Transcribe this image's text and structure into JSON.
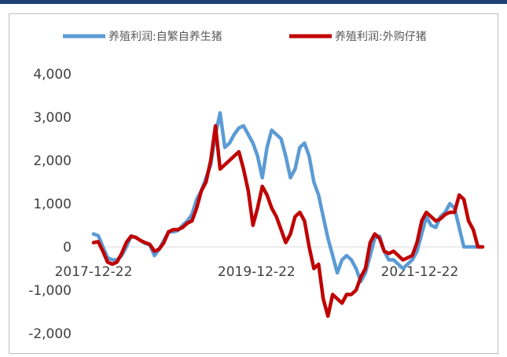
{
  "chart_data": {
    "type": "line",
    "title": "",
    "xlabel": "",
    "ylabel": "",
    "ylim": [
      -2000,
      4000
    ],
    "yticks": [
      -2000,
      -1000,
      0,
      1000,
      2000,
      3000,
      4000
    ],
    "ytick_labels": [
      "-2,000",
      "-1,000",
      "0",
      "1,000",
      "2,000",
      "3,000",
      "4,000"
    ],
    "xtick_labels": [
      "2017-12-22",
      "2019-12-22",
      "2021-12-22"
    ],
    "legend": "top",
    "grid": false,
    "series": [
      {
        "name": "养殖利润:自繁自养生猪",
        "color": "#5b9bd5",
        "x": [
          "2017-12-22",
          "2018-01-12",
          "2018-02-02",
          "2018-02-23",
          "2018-03-16",
          "2018-04-06",
          "2018-04-27",
          "2018-05-18",
          "2018-06-08",
          "2018-06-29",
          "2018-07-20",
          "2018-08-10",
          "2018-08-31",
          "2018-09-21",
          "2018-10-12",
          "2018-11-02",
          "2018-11-23",
          "2018-12-14",
          "2019-01-04",
          "2019-01-25",
          "2019-02-15",
          "2019-03-08",
          "2019-03-29",
          "2019-04-19",
          "2019-05-10",
          "2019-05-31",
          "2019-06-21",
          "2019-07-12",
          "2019-08-02",
          "2019-08-23",
          "2019-09-13",
          "2019-10-04",
          "2019-10-25",
          "2019-11-15",
          "2019-12-06",
          "2019-12-27",
          "2020-01-17",
          "2020-02-07",
          "2020-02-28",
          "2020-03-20",
          "2020-04-10",
          "2020-05-01",
          "2020-05-22",
          "2020-06-12",
          "2020-07-03",
          "2020-07-24",
          "2020-08-14",
          "2020-09-04",
          "2020-09-25",
          "2020-10-16",
          "2020-11-06",
          "2020-11-27",
          "2020-12-18",
          "2021-01-08",
          "2021-01-29",
          "2021-02-19",
          "2021-03-12",
          "2021-04-02",
          "2021-04-23",
          "2021-05-14",
          "2021-06-04",
          "2021-06-25",
          "2021-07-16",
          "2021-08-06",
          "2021-08-27",
          "2021-09-17",
          "2021-10-08",
          "2021-10-29",
          "2021-11-19",
          "2021-12-10",
          "2021-12-31",
          "2022-01-21",
          "2022-02-11",
          "2022-03-04",
          "2022-03-25",
          "2022-04-15",
          "2022-05-06",
          "2022-05-27",
          "2022-06-17",
          "2022-07-08",
          "2022-07-29",
          "2022-08-19",
          "2022-09-09",
          "2022-09-30"
        ],
        "values": [
          300,
          260,
          0,
          -250,
          -300,
          -300,
          -200,
          0,
          250,
          220,
          150,
          80,
          50,
          -200,
          -50,
          150,
          350,
          350,
          380,
          500,
          600,
          750,
          1100,
          1300,
          1600,
          1900,
          2600,
          3100,
          2300,
          2400,
          2600,
          2750,
          2800,
          2600,
          2400,
          2100,
          1600,
          2300,
          2700,
          2600,
          2500,
          2100,
          1600,
          1800,
          2300,
          2400,
          2100,
          1500,
          1200,
          700,
          200,
          -200,
          -600,
          -300,
          -200,
          -300,
          -500,
          -800,
          -600,
          -200,
          200,
          250,
          -100,
          -300,
          -300,
          -400,
          -500,
          -400,
          -300,
          -100,
          300,
          700,
          500,
          450,
          700,
          800,
          1000,
          900,
          450,
          0,
          0,
          0,
          0,
          0
        ]
      },
      {
        "name": "养殖利润:外购仔猪",
        "color": "#c00000",
        "x": [
          "2017-12-22",
          "2018-01-12",
          "2018-02-02",
          "2018-02-23",
          "2018-03-16",
          "2018-04-06",
          "2018-04-27",
          "2018-05-18",
          "2018-06-08",
          "2018-06-29",
          "2018-07-20",
          "2018-08-10",
          "2018-08-31",
          "2018-09-21",
          "2018-10-12",
          "2018-11-02",
          "2018-11-23",
          "2018-12-14",
          "2019-01-04",
          "2019-01-25",
          "2019-02-15",
          "2019-03-08",
          "2019-03-29",
          "2019-04-19",
          "2019-05-10",
          "2019-05-31",
          "2019-06-21",
          "2019-07-12",
          "2019-08-02",
          "2019-08-23",
          "2019-09-13",
          "2019-10-04",
          "2019-10-25",
          "2019-11-15",
          "2019-12-06",
          "2019-12-27",
          "2020-01-17",
          "2020-02-07",
          "2020-02-28",
          "2020-03-20",
          "2020-04-10",
          "2020-05-01",
          "2020-05-22",
          "2020-06-12",
          "2020-07-03",
          "2020-07-24",
          "2020-08-14",
          "2020-09-04",
          "2020-09-25",
          "2020-10-16",
          "2020-11-06",
          "2020-11-27",
          "2020-12-18",
          "2021-01-08",
          "2021-01-29",
          "2021-02-19",
          "2021-03-12",
          "2021-04-02",
          "2021-04-23",
          "2021-05-14",
          "2021-06-04",
          "2021-06-25",
          "2021-07-16",
          "2021-08-06",
          "2021-08-27",
          "2021-09-17",
          "2021-10-08",
          "2021-10-29",
          "2021-11-19",
          "2021-12-10",
          "2021-12-31",
          "2022-01-21",
          "2022-02-11",
          "2022-03-04",
          "2022-03-25",
          "2022-04-15",
          "2022-05-06",
          "2022-05-27",
          "2022-06-17",
          "2022-07-08",
          "2022-07-29",
          "2022-08-19",
          "2022-09-09",
          "2022-09-30"
        ],
        "values": [
          100,
          120,
          -100,
          -350,
          -400,
          -350,
          -150,
          100,
          250,
          220,
          150,
          100,
          60,
          -100,
          -50,
          100,
          350,
          400,
          400,
          450,
          550,
          600,
          900,
          1300,
          1500,
          2000,
          2800,
          1800,
          1900,
          2000,
          2100,
          2200,
          1800,
          1300,
          500,
          900,
          1400,
          1200,
          900,
          700,
          400,
          100,
          300,
          700,
          800,
          600,
          0,
          -500,
          -400,
          -1200,
          -1600,
          -1100,
          -1200,
          -1300,
          -1100,
          -1100,
          -1000,
          -700,
          -500,
          100,
          300,
          200,
          -100,
          -150,
          -100,
          -200,
          -300,
          -250,
          -200,
          100,
          600,
          800,
          700,
          600,
          650,
          750,
          800,
          800,
          1200,
          1100,
          600,
          400,
          0,
          0
        ]
      }
    ]
  }
}
